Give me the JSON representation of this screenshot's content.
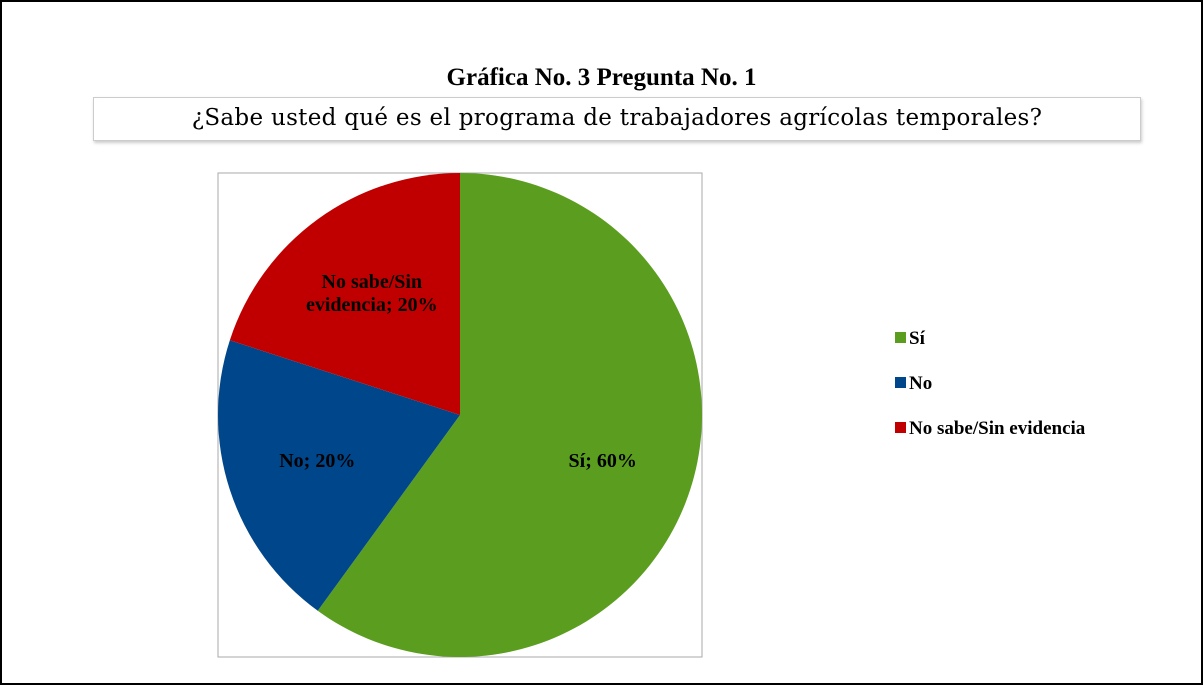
{
  "chart_data": {
    "type": "pie",
    "title": "Gráfica No. 3 Pregunta No. 1",
    "subtitle": "¿Sabe usted qué es el programa de trabajadores agrícolas temporales?",
    "categories": [
      "Sí",
      "No",
      "No sabe/Sin evidencia"
    ],
    "values": [
      60,
      20,
      20
    ],
    "value_labels": [
      "Sí; 60%",
      "No; 20%",
      "No sabe/Sin evidencia; 20%"
    ],
    "colors": [
      "#5b9e1f",
      "#00468a",
      "#c00000"
    ],
    "legend": "right"
  }
}
